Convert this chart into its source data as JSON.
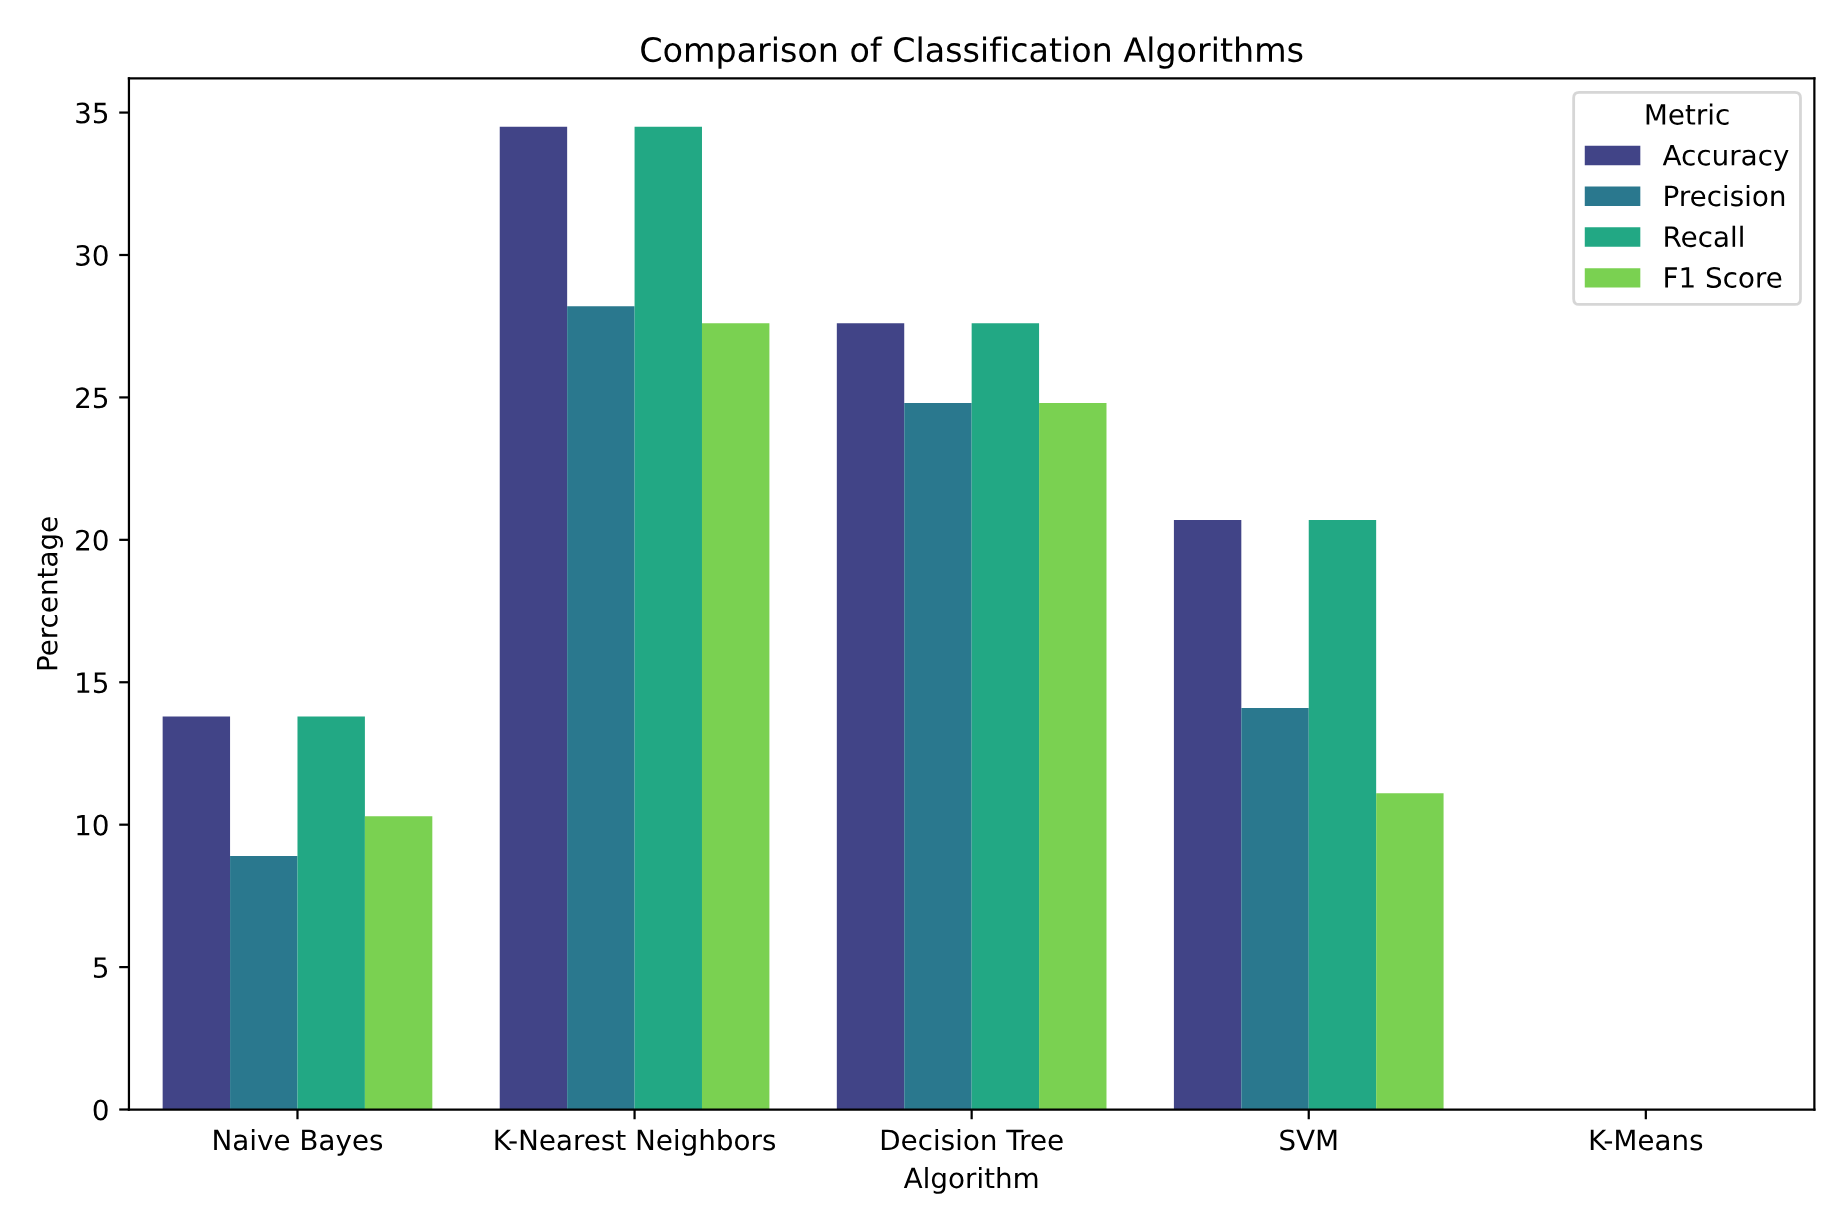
{
  "chart_data": {
    "type": "bar",
    "title": "Comparison of Classification Algorithms",
    "xlabel": "Algorithm",
    "ylabel": "Percentage",
    "legend_title": "Metric",
    "legend": "top right",
    "grid": false,
    "categories": [
      "Naive Bayes",
      "K-Nearest Neighbors",
      "Decision Tree",
      "SVM",
      "K-Means"
    ],
    "ylim": [
      0,
      36.2
    ],
    "yticks": [
      0,
      5,
      10,
      15,
      20,
      25,
      30,
      35
    ],
    "series": [
      {
        "name": "Accuracy",
        "color": "#414487",
        "values": [
          13.8,
          34.5,
          27.6,
          20.7,
          0
        ]
      },
      {
        "name": "Precision",
        "color": "#2a788e",
        "values": [
          8.9,
          28.2,
          24.8,
          14.1,
          0
        ]
      },
      {
        "name": "Recall",
        "color": "#22a884",
        "values": [
          13.8,
          34.5,
          27.6,
          20.7,
          0
        ]
      },
      {
        "name": "F1 Score",
        "color": "#7ad151",
        "values": [
          10.3,
          27.6,
          24.8,
          11.1,
          0
        ]
      }
    ]
  }
}
